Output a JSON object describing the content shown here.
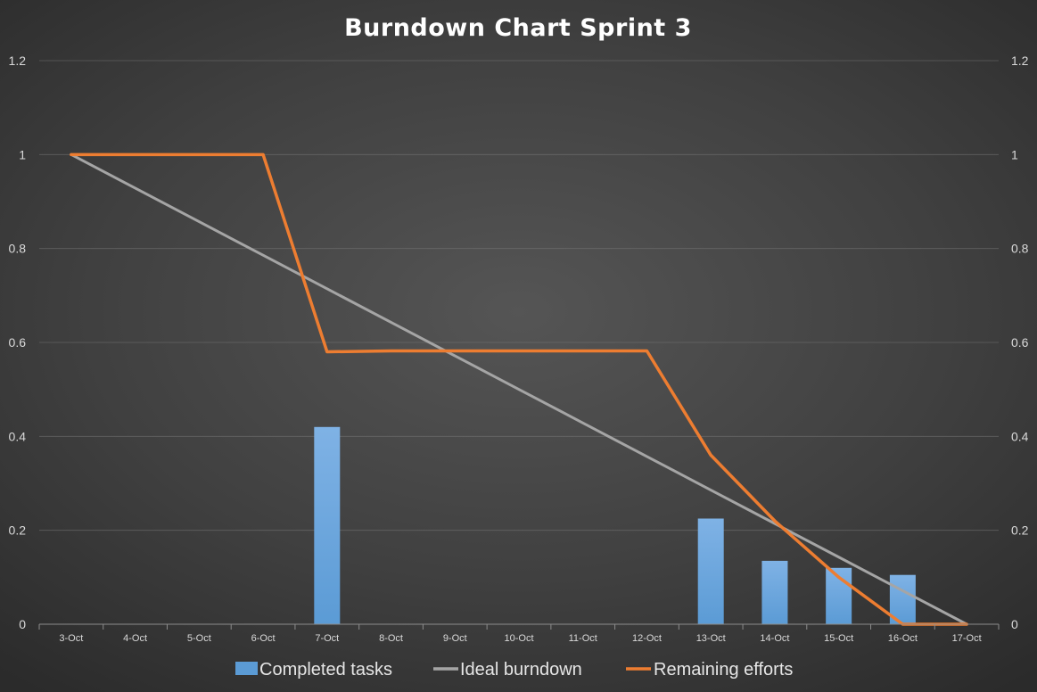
{
  "chart_data": {
    "type": "bar",
    "title": "Burndown Chart Sprint 3",
    "categories": [
      "3-Oct",
      "4-Oct",
      "5-Oct",
      "6-Oct",
      "7-Oct",
      "8-Oct",
      "9-Oct",
      "10-Oct",
      "11-Oct",
      "12-Oct",
      "13-Oct",
      "14-Oct",
      "15-Oct",
      "16-Oct",
      "17-Oct"
    ],
    "ylim": [
      0,
      1.2
    ],
    "yticks": [
      "0",
      "0.2",
      "0.4",
      "0.6",
      "0.8",
      "1",
      "1.2"
    ],
    "ytick_values": [
      0,
      0.2,
      0.4,
      0.6,
      0.8,
      1,
      1.2
    ],
    "grid": true,
    "legend_position": "bottom",
    "series": [
      {
        "name": "Completed tasks",
        "type": "bar",
        "color": "#5b9bd5",
        "values": [
          0,
          0,
          0,
          0,
          0.42,
          0,
          0,
          0,
          0,
          0,
          0.225,
          0.135,
          0.12,
          0.105,
          0
        ]
      },
      {
        "name": "Ideal burndown",
        "type": "line",
        "color": "#a5a5a5",
        "values": [
          1,
          0.9286,
          0.8571,
          0.7857,
          0.7143,
          0.6429,
          0.5714,
          0.5,
          0.4286,
          0.3571,
          0.2857,
          0.2143,
          0.1429,
          0.0714,
          0
        ]
      },
      {
        "name": "Remaining efforts",
        "type": "line",
        "color": "#ed7d31",
        "values": [
          1,
          1,
          1,
          1,
          0.58,
          0.582,
          0.582,
          0.582,
          0.582,
          0.582,
          0.36,
          0.22,
          0.1,
          0,
          0
        ]
      }
    ]
  }
}
